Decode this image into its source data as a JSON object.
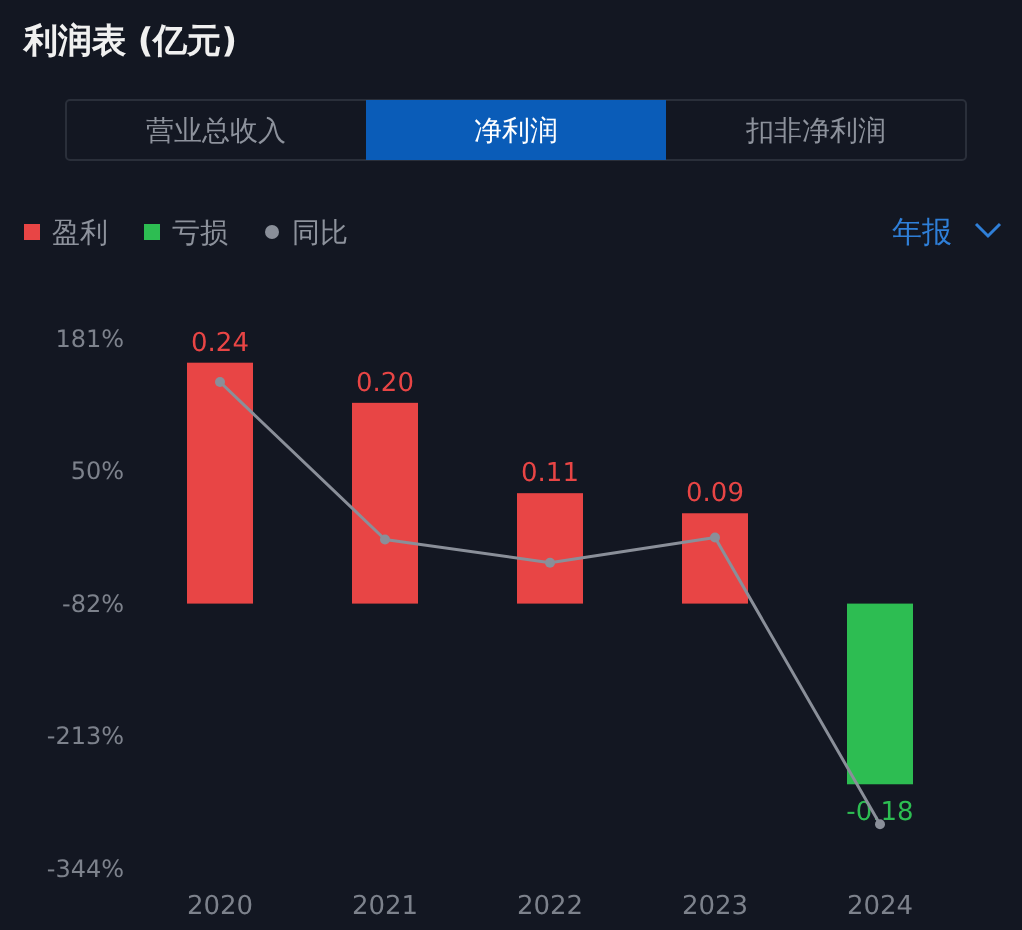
{
  "chart_data": {
    "type": "bar",
    "title": "利润表 (亿元)",
    "annotations": [
      "营业总收入",
      "净利润",
      "扣非净利润",
      "年报"
    ],
    "categories": [
      "2020",
      "2021",
      "2022",
      "2023",
      "2024"
    ],
    "stacked": true,
    "series": [
      {
        "name": "盈利",
        "axis": "y2",
        "color": "#e84545",
        "values": [
          0.24,
          0.2,
          0.11,
          0.09,
          null
        ],
        "value_labels": [
          "0.24",
          "0.20",
          "0.11",
          "0.09",
          null
        ]
      },
      {
        "name": "亏损",
        "axis": "y2",
        "color": "#2dbd52",
        "values": [
          null,
          null,
          null,
          null,
          -0.18
        ],
        "value_labels": [
          null,
          null,
          null,
          null,
          "-0.18"
        ]
      },
      {
        "name": "同比",
        "type": "line",
        "axis": "y",
        "color": "#8a8f99",
        "marker": "circle",
        "values": [
          138,
          -18,
          -41,
          -16,
          -300
        ]
      }
    ],
    "ylim": [
      -344,
      181
    ],
    "yticks": [
      {
        "value": 181,
        "label": "181%"
      },
      {
        "value": 50,
        "label": "50%"
      },
      {
        "value": -82,
        "label": "-82%"
      },
      {
        "value": -213,
        "label": "-213%"
      },
      {
        "value": -344,
        "label": "-344%"
      }
    ],
    "legend": "top left"
  }
}
